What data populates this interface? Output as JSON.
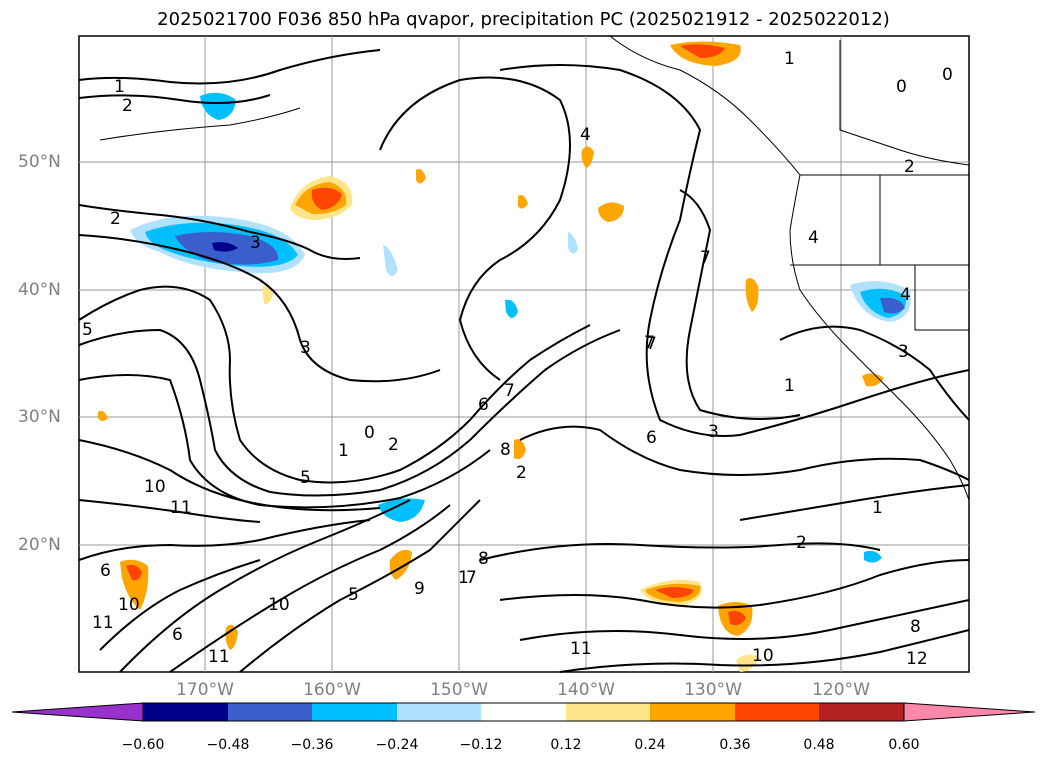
{
  "title": "2025021700 F036 850 hPa qvapor, precipitation PC (2025021912 - 2025022012)",
  "latitude_labels": [
    "50°N",
    "40°N",
    "30°N",
    "20°N"
  ],
  "longitude_labels": [
    "170°W",
    "160°W",
    "150°W",
    "140°W",
    "130°W",
    "120°W"
  ],
  "colorbar": {
    "ticks": [
      "−0.60",
      "−0.48",
      "−0.36",
      "−0.24",
      "−0.12",
      "0.12",
      "0.24",
      "0.36",
      "0.48",
      "0.60"
    ],
    "colors": [
      "#9932cc",
      "#00008b",
      "#3a5fcd",
      "#00bfff",
      "#b0e2ff",
      "#ffffff",
      "#ffe58a",
      "#ffa500",
      "#ff4500",
      "#b22222",
      "#ff88aa"
    ]
  },
  "contour_labels": [
    "1",
    "2",
    "3",
    "4",
    "5",
    "6",
    "7",
    "8",
    "9",
    "10",
    "11",
    "12",
    "0"
  ],
  "colors": {
    "positive_anomaly": "#ffa500",
    "strong_positive": "#ff4500",
    "light_positive": "#ffe58a",
    "negative_anomaly": "#00bfff",
    "strong_negative": "#3a5fcd",
    "light_negative": "#b0e2ff"
  }
}
